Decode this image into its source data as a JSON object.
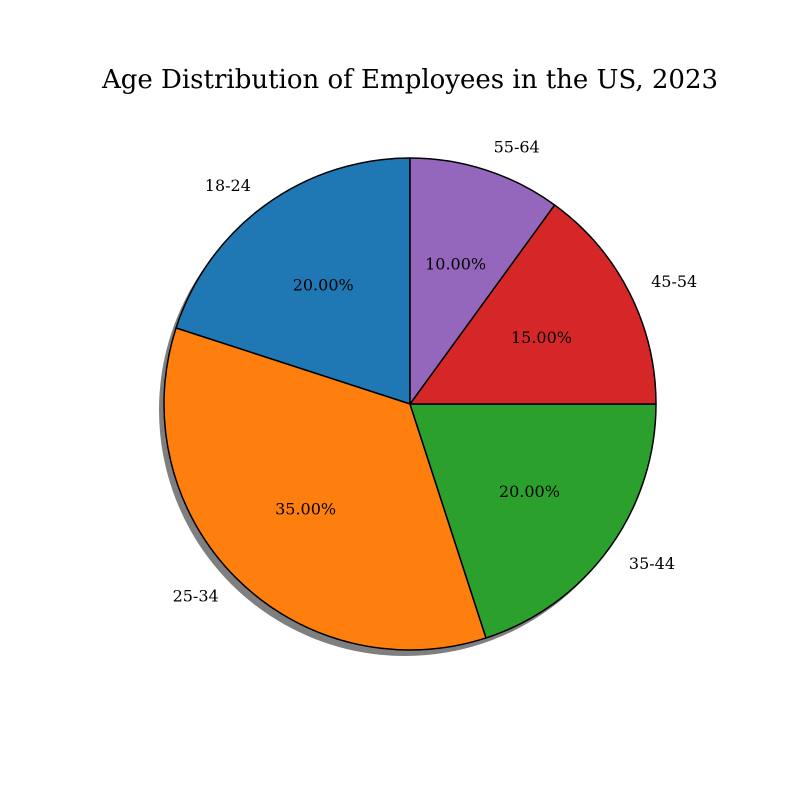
{
  "chart_data": {
    "type": "pie",
    "title": "Age Distribution of Employees in the US, 2023",
    "slices": [
      {
        "label": "18-24",
        "value": 20,
        "pct_label": "20.00%",
        "color": "#1f77b4"
      },
      {
        "label": "25-34",
        "value": 35,
        "pct_label": "35.00%",
        "color": "#ff7f0e"
      },
      {
        "label": "35-44",
        "value": 20,
        "pct_label": "20.00%",
        "color": "#2ca02c"
      },
      {
        "label": "45-54",
        "value": 15,
        "pct_label": "15.00%",
        "color": "#d62728"
      },
      {
        "label": "55-64",
        "value": 10,
        "pct_label": "10.00%",
        "color": "#9467bd"
      }
    ],
    "start_angle_deg": 90,
    "direction": "counterclockwise",
    "shadow": true,
    "edge_color": "#000000",
    "legend": "none"
  }
}
